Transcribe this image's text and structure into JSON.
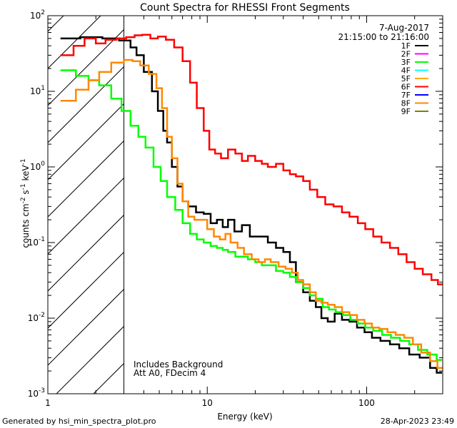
{
  "chart_data": {
    "type": "line",
    "title": "Count Spectra for RHESSI Front Segments",
    "xlabel": "Energy (keV)",
    "ylabel": "counts cm⁻² s⁻¹ keV⁻¹",
    "x_scale": "log",
    "y_scale": "log",
    "xlim": [
      1,
      300
    ],
    "ylim": [
      0.001,
      100
    ],
    "x_ticks": [
      {
        "value": 1,
        "label": "1"
      },
      {
        "value": 10,
        "label": "10"
      },
      {
        "value": 100,
        "label": "100"
      }
    ],
    "y_ticks": [
      {
        "value": 100,
        "mant": "10",
        "exp": "2"
      },
      {
        "value": 10,
        "mant": "10",
        "exp": "1"
      },
      {
        "value": 1,
        "mant": "10",
        "exp": "0"
      },
      {
        "value": 0.1,
        "mant": "10",
        "exp": "-1"
      },
      {
        "value": 0.01,
        "mant": "10",
        "exp": "-2"
      },
      {
        "value": 0.001,
        "mant": "10",
        "exp": "-3"
      }
    ],
    "date": "7-Aug-2017",
    "time_range": "21:15:00 to 21:16:00",
    "shaded_region": {
      "x_max": 3,
      "pattern": "diagonal hatch"
    },
    "annotations": [
      "Includes Background",
      "Att A0, FDecim 4"
    ],
    "legend": [
      {
        "label": "1F",
        "color": "#000000"
      },
      {
        "label": "2F",
        "color": "#ff00ff"
      },
      {
        "label": "3F",
        "color": "#00ff00"
      },
      {
        "label": "4F",
        "color": "#00ffff"
      },
      {
        "label": "5F",
        "color": "#ffaa00"
      },
      {
        "label": "6F",
        "color": "#ff0000"
      },
      {
        "label": "7F",
        "color": "#0000ff"
      },
      {
        "label": "8F",
        "color": "#ff8800"
      },
      {
        "label": "9F",
        "color": "#808000"
      }
    ],
    "series": [
      {
        "name": "1F",
        "color": "#000000",
        "points": [
          [
            1.2,
            50
          ],
          [
            1.6,
            52
          ],
          [
            2.2,
            50
          ],
          [
            2.8,
            47
          ],
          [
            3.3,
            38
          ],
          [
            3.6,
            30
          ],
          [
            4.0,
            18
          ],
          [
            4.5,
            10
          ],
          [
            4.9,
            5.5
          ],
          [
            5.3,
            3.0
          ],
          [
            5.6,
            2.1
          ],
          [
            6.0,
            1.0
          ],
          [
            6.5,
            0.55
          ],
          [
            7.0,
            0.35
          ],
          [
            7.6,
            0.3
          ],
          [
            8.5,
            0.25
          ],
          [
            9.5,
            0.24
          ],
          [
            10.5,
            0.18
          ],
          [
            11.5,
            0.2
          ],
          [
            12.5,
            0.16
          ],
          [
            13.5,
            0.2
          ],
          [
            14.8,
            0.14
          ],
          [
            16.5,
            0.17
          ],
          [
            18.5,
            0.12
          ],
          [
            21,
            0.12
          ],
          [
            24,
            0.1
          ],
          [
            27,
            0.085
          ],
          [
            30,
            0.075
          ],
          [
            33,
            0.055
          ],
          [
            36,
            0.03
          ],
          [
            40,
            0.022
          ],
          [
            44,
            0.017
          ],
          [
            48,
            0.014
          ],
          [
            52,
            0.01
          ],
          [
            57,
            0.009
          ],
          [
            63,
            0.0115
          ],
          [
            70,
            0.0095
          ],
          [
            78,
            0.009
          ],
          [
            87,
            0.0075
          ],
          [
            97,
            0.0065
          ],
          [
            108,
            0.0055
          ],
          [
            122,
            0.005
          ],
          [
            140,
            0.0045
          ],
          [
            160,
            0.004
          ],
          [
            185,
            0.0033
          ],
          [
            215,
            0.003
          ],
          [
            250,
            0.0022
          ],
          [
            275,
            0.0019
          ]
        ]
      },
      {
        "name": "3F",
        "color": "#00ff00",
        "points": [
          [
            1.2,
            19
          ],
          [
            1.5,
            16
          ],
          [
            1.8,
            14
          ],
          [
            2.1,
            12
          ],
          [
            2.5,
            8
          ],
          [
            2.9,
            5.5
          ],
          [
            3.3,
            3.5
          ],
          [
            3.7,
            2.5
          ],
          [
            4.1,
            1.8
          ],
          [
            4.6,
            1.0
          ],
          [
            5.1,
            0.65
          ],
          [
            5.6,
            0.4
          ],
          [
            6.3,
            0.27
          ],
          [
            7.0,
            0.18
          ],
          [
            7.8,
            0.13
          ],
          [
            8.6,
            0.11
          ],
          [
            9.5,
            0.1
          ],
          [
            10.5,
            0.09
          ],
          [
            11.5,
            0.085
          ],
          [
            12.5,
            0.08
          ],
          [
            13.5,
            0.075
          ],
          [
            15,
            0.065
          ],
          [
            16.5,
            0.065
          ],
          [
            18,
            0.06
          ],
          [
            20,
            0.055
          ],
          [
            22,
            0.05
          ],
          [
            24,
            0.05
          ],
          [
            27,
            0.042
          ],
          [
            30,
            0.04
          ],
          [
            33,
            0.035
          ],
          [
            36,
            0.03
          ],
          [
            40,
            0.025
          ],
          [
            44,
            0.02
          ],
          [
            48,
            0.018
          ],
          [
            53,
            0.014
          ],
          [
            58,
            0.013
          ],
          [
            64,
            0.012
          ],
          [
            71,
            0.011
          ],
          [
            79,
            0.0095
          ],
          [
            88,
            0.0085
          ],
          [
            98,
            0.0075
          ],
          [
            110,
            0.0068
          ],
          [
            125,
            0.006
          ],
          [
            142,
            0.0055
          ],
          [
            162,
            0.005
          ],
          [
            185,
            0.0045
          ],
          [
            210,
            0.0038
          ],
          [
            240,
            0.0033
          ],
          [
            275,
            0.0028
          ]
        ]
      },
      {
        "name": "8F",
        "color": "#ff8800",
        "points": [
          [
            1.2,
            7.5
          ],
          [
            1.5,
            10.5
          ],
          [
            1.8,
            14
          ],
          [
            2.1,
            18
          ],
          [
            2.5,
            24
          ],
          [
            3.0,
            26
          ],
          [
            3.4,
            25
          ],
          [
            3.8,
            22
          ],
          [
            4.3,
            17
          ],
          [
            4.8,
            11
          ],
          [
            5.2,
            6
          ],
          [
            5.6,
            2.5
          ],
          [
            6.0,
            1.3
          ],
          [
            6.5,
            0.6
          ],
          [
            7.0,
            0.35
          ],
          [
            7.6,
            0.22
          ],
          [
            8.3,
            0.2
          ],
          [
            9.0,
            0.2
          ],
          [
            10,
            0.15
          ],
          [
            11,
            0.12
          ],
          [
            12,
            0.11
          ],
          [
            13,
            0.13
          ],
          [
            14,
            0.1
          ],
          [
            15.5,
            0.085
          ],
          [
            17,
            0.07
          ],
          [
            19,
            0.06
          ],
          [
            21,
            0.055
          ],
          [
            23,
            0.06
          ],
          [
            25,
            0.055
          ],
          [
            28,
            0.048
          ],
          [
            31,
            0.045
          ],
          [
            34,
            0.04
          ],
          [
            37,
            0.032
          ],
          [
            40,
            0.028
          ],
          [
            44,
            0.022
          ],
          [
            48,
            0.017
          ],
          [
            52,
            0.016
          ],
          [
            57,
            0.015
          ],
          [
            63,
            0.014
          ],
          [
            70,
            0.012
          ],
          [
            78,
            0.011
          ],
          [
            87,
            0.0095
          ],
          [
            97,
            0.0085
          ],
          [
            108,
            0.0075
          ],
          [
            120,
            0.0072
          ],
          [
            135,
            0.0065
          ],
          [
            152,
            0.006
          ],
          [
            172,
            0.0055
          ],
          [
            195,
            0.0045
          ],
          [
            220,
            0.0035
          ],
          [
            250,
            0.0027
          ],
          [
            278,
            0.0022
          ]
        ]
      },
      {
        "name": "6F",
        "color": "#ff0000",
        "points": [
          [
            1.2,
            30
          ],
          [
            1.45,
            40
          ],
          [
            1.7,
            50
          ],
          [
            2.0,
            43
          ],
          [
            2.3,
            48
          ],
          [
            2.7,
            50
          ],
          [
            3.1,
            52
          ],
          [
            3.5,
            55
          ],
          [
            3.9,
            56
          ],
          [
            4.4,
            50
          ],
          [
            4.9,
            53
          ],
          [
            5.5,
            48
          ],
          [
            6.2,
            38
          ],
          [
            7.0,
            25
          ],
          [
            7.8,
            13
          ],
          [
            8.6,
            6
          ],
          [
            9.5,
            3.0
          ],
          [
            10.3,
            1.7
          ],
          [
            11.2,
            1.5
          ],
          [
            12.2,
            1.3
          ],
          [
            13.5,
            1.7
          ],
          [
            15,
            1.5
          ],
          [
            16.5,
            1.2
          ],
          [
            18,
            1.4
          ],
          [
            20,
            1.2
          ],
          [
            22,
            1.1
          ],
          [
            24,
            1.0
          ],
          [
            27,
            1.1
          ],
          [
            30,
            0.9
          ],
          [
            33,
            0.8
          ],
          [
            36,
            0.75
          ],
          [
            40,
            0.65
          ],
          [
            44,
            0.5
          ],
          [
            49,
            0.4
          ],
          [
            55,
            0.32
          ],
          [
            62,
            0.3
          ],
          [
            70,
            0.25
          ],
          [
            78,
            0.22
          ],
          [
            88,
            0.18
          ],
          [
            98,
            0.15
          ],
          [
            110,
            0.12
          ],
          [
            124,
            0.1
          ],
          [
            140,
            0.085
          ],
          [
            158,
            0.07
          ],
          [
            178,
            0.055
          ],
          [
            200,
            0.045
          ],
          [
            225,
            0.038
          ],
          [
            255,
            0.032
          ],
          [
            280,
            0.028
          ]
        ]
      }
    ]
  },
  "footer": {
    "left": "Generated by hsi_min_spectra_plot.pro",
    "right": "28-Apr-2023 23:49"
  }
}
